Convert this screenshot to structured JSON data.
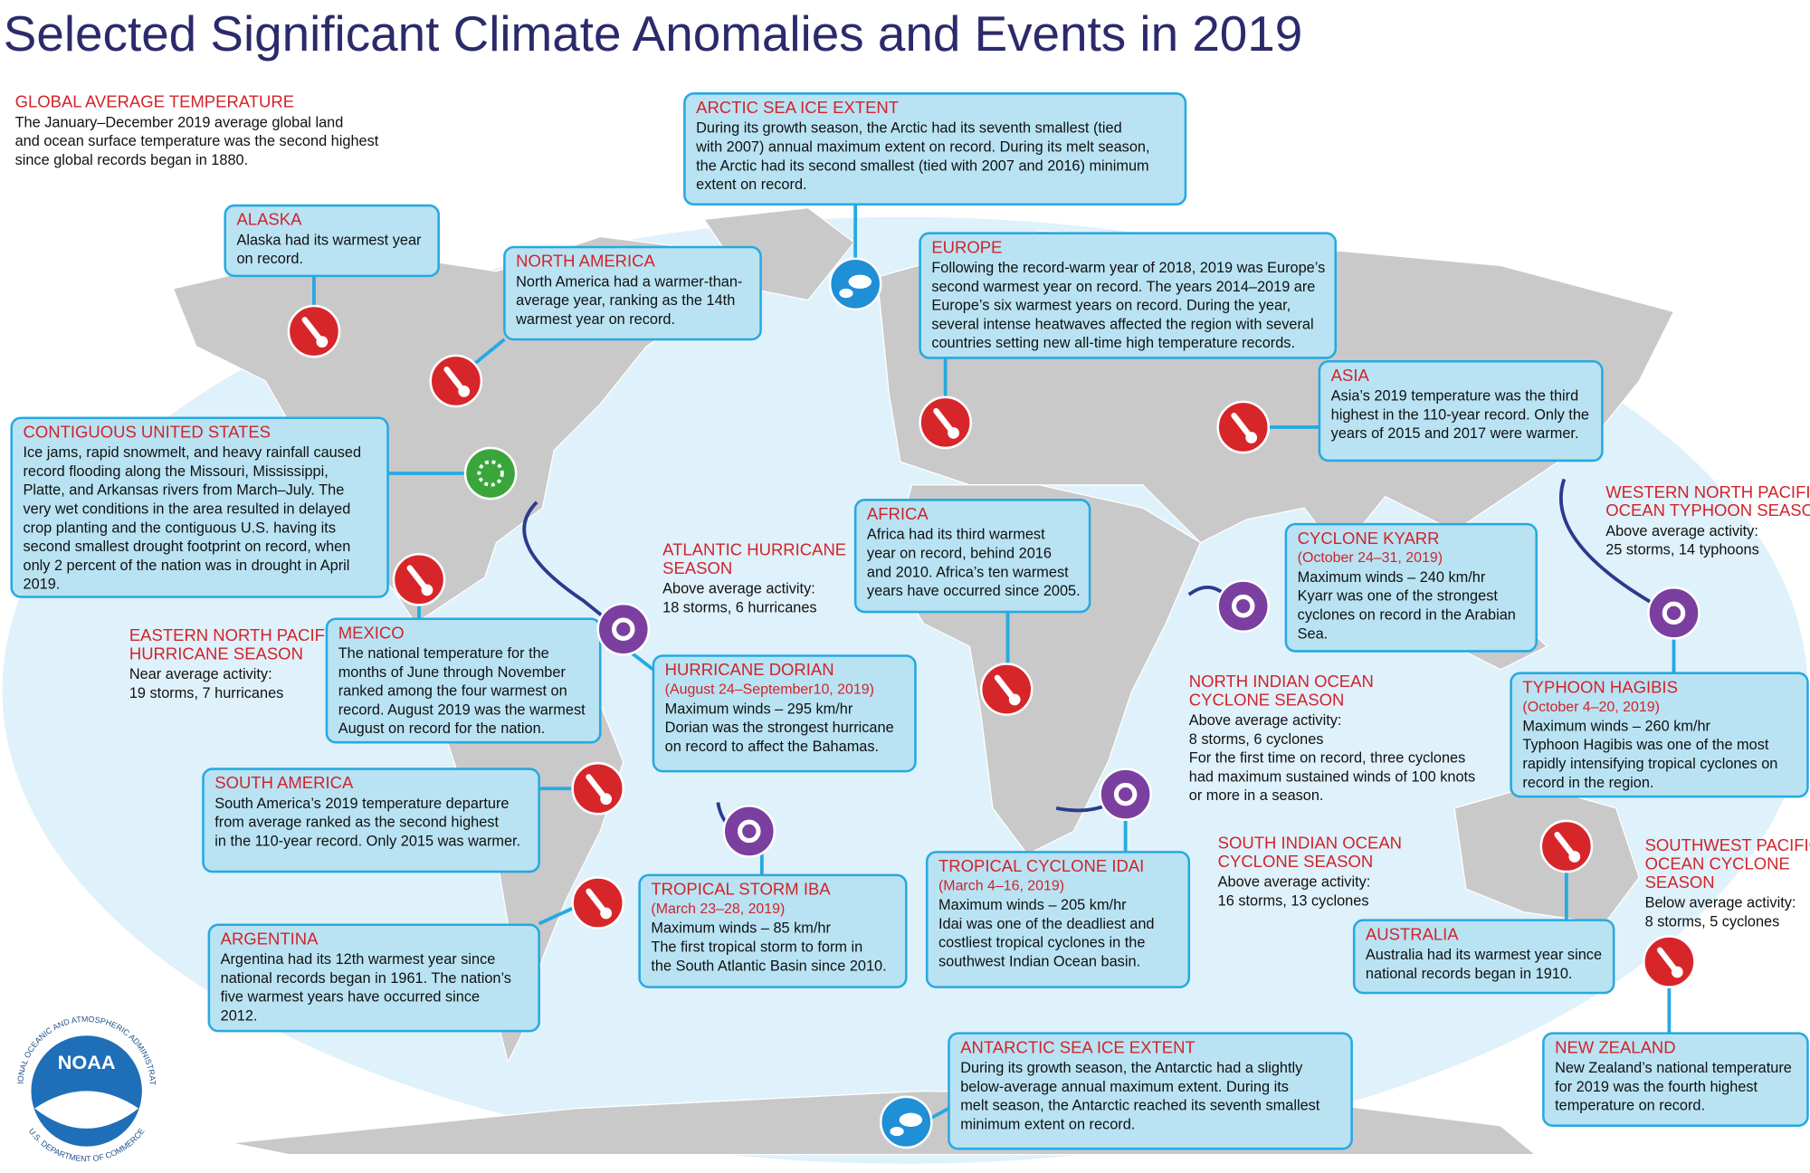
{
  "title": "Selected Significant Climate Anomalies and Events in 2019",
  "boxes": [
    {
      "heading": [
        "GLOBAL AVERAGE TEMPERATURE"
      ],
      "lines": [
        "The January–December 2019 average global land",
        "and ocean surface temperature was the second highest",
        "since global records began in 1880."
      ]
    },
    {
      "heading": [
        "ARCTIC SEA ICE EXTENT"
      ],
      "lines": [
        "During its growth season, the Arctic had its seventh smallest (tied",
        "with 2007) annual maximum extent on record. During its melt season,",
        "the Arctic had its second smallest (tied with 2007 and 2016) minimum",
        "extent on record."
      ]
    },
    {
      "heading": [
        "ALASKA"
      ],
      "lines": [
        "Alaska had its warmest year",
        "on record."
      ]
    },
    {
      "heading": [
        "NORTH AMERICA"
      ],
      "lines": [
        "North America had a warmer-than-",
        "average year, ranking as the 14th",
        "warmest year on record."
      ]
    },
    {
      "heading": [
        "EUROPE"
      ],
      "lines": [
        "Following the record-warm year of 2018, 2019 was Europe’s",
        "second warmest year on record.  The years 2014–2019 are",
        "Europe’s six warmest years on record. During the year,",
        "several intense heatwaves affected the region with several",
        "countries setting new all-time high temperature records."
      ]
    },
    {
      "heading": [
        "ASIA"
      ],
      "lines": [
        "Asia’s 2019 temperature was the third",
        "highest in the 110-year record. Only the",
        "years of 2015 and 2017 were warmer."
      ]
    },
    {
      "heading": [
        "CONTIGUOUS UNITED STATES"
      ],
      "lines": [
        "Ice jams, rapid snowmelt, and heavy rainfall caused",
        "record flooding along the Missouri, Mississippi,",
        "Platte, and Arkansas rivers from March–July. The",
        "very wet conditions in the area resulted in delayed",
        "crop planting and the contiguous U.S. having its",
        "second smallest drought footprint on record, when",
        "only 2 percent of the nation was in drought in April",
        "2019."
      ]
    },
    {
      "heading": [
        "WESTERN NORTH PACIFIC",
        "OCEAN TYPHOON SEASON"
      ],
      "lines": [
        "Above average activity:",
        "25 storms, 14 typhoons"
      ]
    },
    {
      "heading": [
        "AFRICA"
      ],
      "lines": [
        "Africa had its third warmest",
        "year on record, behind 2016",
        "and 2010. Africa’s ten warmest",
        "years have occurred since 2005."
      ]
    },
    {
      "heading": [
        "ATLANTIC HURRICANE",
        "SEASON"
      ],
      "lines": [
        "Above average activity:",
        "18 storms, 6 hurricanes"
      ]
    },
    {
      "heading": [
        "CYCLONE KYARR"
      ],
      "dates": "(October 24–31, 2019)",
      "lines": [
        "Maximum winds – 240 km/hr",
        "Kyarr was one of the strongest",
        "cyclones on record in the Arabian",
        "Sea."
      ]
    },
    {
      "heading": [
        "EASTERN NORTH PACIFIC",
        "HURRICANE SEASON"
      ],
      "lines": [
        "Near average activity:",
        "19 storms, 7 hurricanes"
      ]
    },
    {
      "heading": [
        "MEXICO"
      ],
      "lines": [
        "The national temperature for the",
        "months of June through November",
        "ranked among the four warmest on",
        "record. August 2019 was the warmest",
        "August on record for the nation."
      ]
    },
    {
      "heading": [
        "HURRICANE DORIAN"
      ],
      "dates": "(August 24–September10, 2019)",
      "lines": [
        "Maximum winds – 295 km/hr",
        "Dorian was the strongest hurricane",
        "on record to affect the Bahamas."
      ]
    },
    {
      "heading": [
        "NORTH INDIAN OCEAN",
        "CYCLONE SEASON"
      ],
      "lines": [
        "Above average activity:",
        "8 storms, 6 cyclones",
        "For the first time on record, three cyclones",
        "had maximum sustained winds of 100 knots",
        "or more in a season."
      ]
    },
    {
      "heading": [
        "TYPHOON HAGIBIS"
      ],
      "dates": "(October 4–20, 2019)",
      "lines": [
        "Maximum winds – 260 km/hr",
        "Typhoon Hagibis was one of the most",
        "rapidly intensifying tropical cyclones on",
        "record in the region."
      ]
    },
    {
      "heading": [
        "SOUTH AMERICA"
      ],
      "lines": [
        "South America’s 2019 temperature departure",
        "from average ranked as the second highest",
        "in the 110-year record. Only 2015 was warmer."
      ]
    },
    {
      "heading": [
        "SOUTH INDIAN OCEAN",
        "CYCLONE SEASON"
      ],
      "lines": [
        "Above average activity:",
        "16 storms, 13 cyclones"
      ]
    },
    {
      "heading": [
        "SOUTHWEST PACIFIC",
        "OCEAN CYCLONE",
        "SEASON"
      ],
      "lines": [
        "Below average activity:",
        "8 storms, 5 cyclones"
      ]
    },
    {
      "heading": [
        "TROPICAL CYCLONE IDAI"
      ],
      "dates": "(March 4–16, 2019)",
      "lines": [
        "Maximum winds – 205 km/hr",
        "Idai was one of the deadliest and",
        "costliest tropical cyclones in the",
        "southwest Indian Ocean basin."
      ]
    },
    {
      "heading": [
        "TROPICAL STORM IBA"
      ],
      "dates": "(March 23–28, 2019)",
      "lines": [
        "Maximum winds – 85 km/hr",
        "The first tropical storm to form in",
        "the South Atlantic Basin since 2010."
      ]
    },
    {
      "heading": [
        "ARGENTINA"
      ],
      "lines": [
        "Argentina had its 12th warmest year since",
        "national records began in 1961.  The nation’s",
        "five warmest years have occurred since",
        "2012."
      ]
    },
    {
      "heading": [
        "AUSTRALIA"
      ],
      "lines": [
        "Australia had its warmest year since",
        "national records began in 1910."
      ]
    },
    {
      "heading": [
        "NEW ZEALAND"
      ],
      "lines": [
        "New Zealand’s national temperature",
        "for 2019 was the fourth highest",
        "temperature on record."
      ]
    },
    {
      "heading": [
        "ANTARCTIC SEA ICE EXTENT"
      ],
      "lines": [
        "During its growth season, the Antarctic had a slightly",
        "below-average annual maximum extent. During its",
        "melt season, the Antarctic reached its seventh smallest",
        "minimum extent on record."
      ]
    }
  ],
  "logo": {
    "name": "NOAA",
    "ring_top": "NATIONAL OCEANIC AND ATMOSPHERIC ADMINISTRATION",
    "ring_bottom": "U.S. DEPARTMENT OF COMMERCE"
  }
}
